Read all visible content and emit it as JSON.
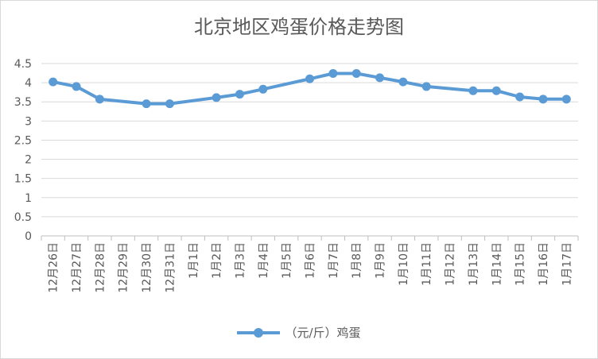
{
  "chart_data": {
    "type": "line",
    "title": "北京地区鸡蛋价格走势图",
    "xlabel": "",
    "ylabel": "",
    "categories": [
      "12月26日",
      "12月27日",
      "12月28日",
      "12月29日",
      "12月30日",
      "12月31日",
      "1月1日",
      "1月2日",
      "1月3日",
      "1月4日",
      "1月5日",
      "1月6日",
      "1月7日",
      "1月8日",
      "1月9日",
      "1月10日",
      "1月11日",
      "1月12日",
      "1月13日",
      "1月14日",
      "1月15日",
      "1月16日",
      "1月17日"
    ],
    "y_ticks": [
      "0",
      "0.5",
      "1",
      "1.5",
      "2",
      "2.5",
      "3",
      "3.5",
      "4",
      "4.5"
    ],
    "ylim": [
      0,
      4.5
    ],
    "series": [
      {
        "name": "（元/斤）鸡蛋",
        "color": "#5b9bd5",
        "values": [
          4.02,
          3.9,
          3.57,
          null,
          3.45,
          3.45,
          null,
          3.61,
          3.7,
          3.83,
          null,
          4.1,
          4.24,
          4.24,
          4.13,
          4.02,
          3.9,
          null,
          3.79,
          3.79,
          3.63,
          3.57,
          3.57
        ]
      }
    ],
    "grid": true,
    "legend_position": "bottom"
  }
}
